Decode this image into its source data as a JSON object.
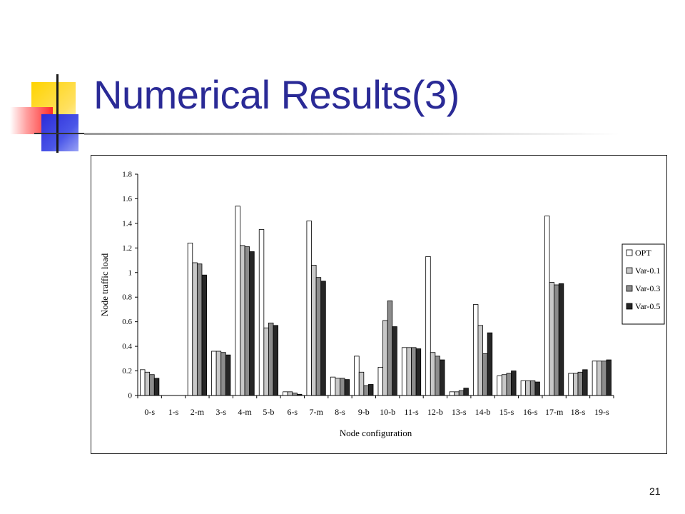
{
  "slide": {
    "title": "Numerical Results(3)",
    "page_number": "21"
  },
  "chart_data": {
    "type": "bar",
    "xlabel": "Node configuration",
    "ylabel": "Node traffic load",
    "ylim": [
      0,
      1.8
    ],
    "yticks": [
      "0",
      "0.2",
      "0.4",
      "0.6",
      "0.8",
      "1",
      "1.2",
      "1.4",
      "1.6",
      "1.8"
    ],
    "categories": [
      "0-s",
      "1-s",
      "2-m",
      "3-s",
      "4-m",
      "5-b",
      "6-s",
      "7-m",
      "8-s",
      "9-b",
      "10-b",
      "11-s",
      "12-b",
      "13-s",
      "14-b",
      "15-s",
      "16-s",
      "17-m",
      "18-s",
      "19-s"
    ],
    "legend_position": "right",
    "series": [
      {
        "name": "OPT",
        "color": "#ffffff",
        "values": [
          0.21,
          0.0,
          1.24,
          0.36,
          1.54,
          1.35,
          0.03,
          1.42,
          0.15,
          0.32,
          0.23,
          0.39,
          1.13,
          0.03,
          0.74,
          0.16,
          0.12,
          1.46,
          0.18,
          0.28
        ]
      },
      {
        "name": "Var-0.1",
        "color": "#c8c8c8",
        "values": [
          0.19,
          0.0,
          1.08,
          0.36,
          1.22,
          0.55,
          0.03,
          1.06,
          0.14,
          0.19,
          0.61,
          0.39,
          0.35,
          0.03,
          0.57,
          0.17,
          0.12,
          0.92,
          0.18,
          0.28
        ]
      },
      {
        "name": "Var-0.3",
        "color": "#8c8c8c",
        "values": [
          0.17,
          0.0,
          1.07,
          0.35,
          1.21,
          0.59,
          0.02,
          0.96,
          0.14,
          0.08,
          0.77,
          0.39,
          0.32,
          0.04,
          0.34,
          0.18,
          0.12,
          0.9,
          0.19,
          0.28
        ]
      },
      {
        "name": "Var-0.5",
        "color": "#262626",
        "values": [
          0.14,
          0.0,
          0.98,
          0.33,
          1.17,
          0.57,
          0.01,
          0.93,
          0.13,
          0.09,
          0.56,
          0.38,
          0.29,
          0.06,
          0.51,
          0.2,
          0.11,
          0.91,
          0.21,
          0.29
        ]
      }
    ]
  }
}
